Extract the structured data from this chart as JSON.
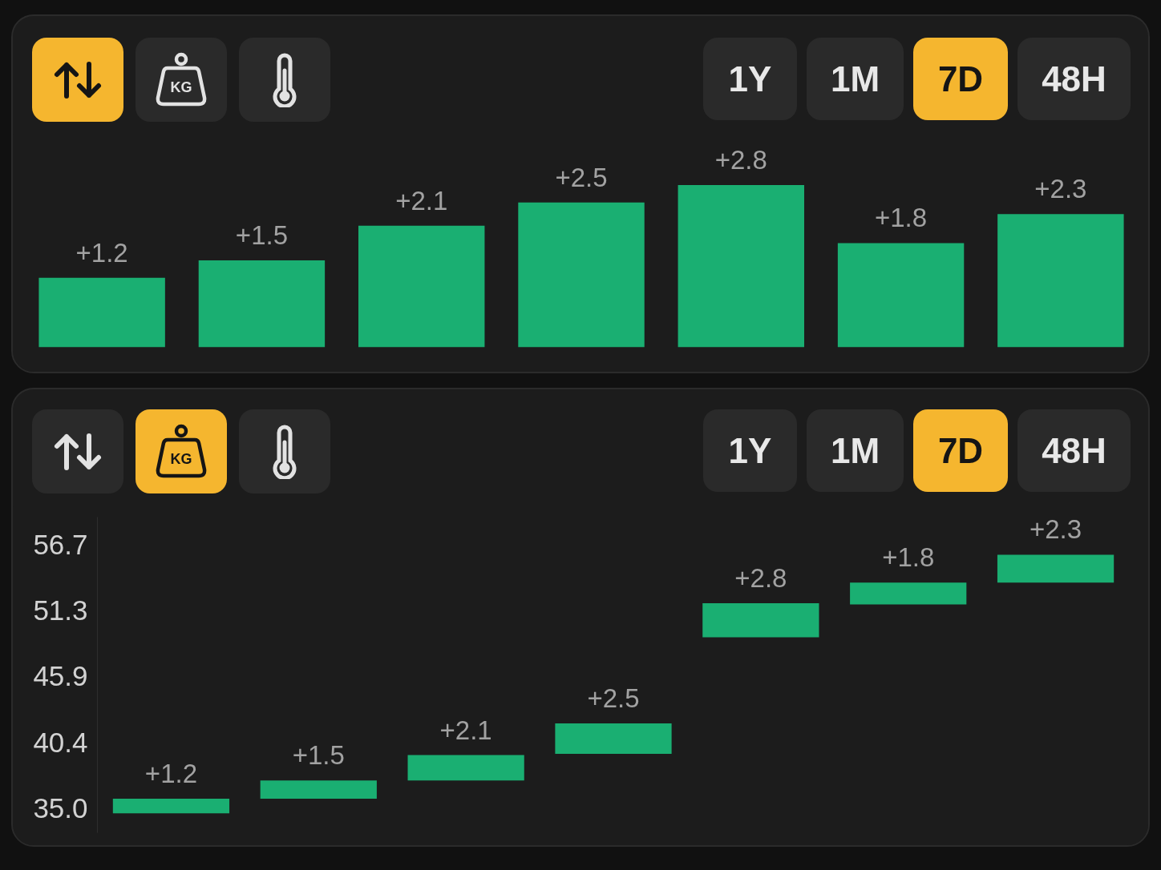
{
  "chart_data": [
    {
      "type": "bar",
      "categories": [
        null,
        null,
        null,
        null,
        null,
        null,
        null
      ],
      "values": [
        1.2,
        1.5,
        2.1,
        2.5,
        2.8,
        1.8,
        2.3
      ],
      "color": "#1aaf72",
      "value_labels": [
        "+1.2",
        "+1.5",
        "+2.1",
        "+2.5",
        "+2.8",
        "+1.8",
        "+2.3"
      ],
      "tick_labels": false,
      "annotations": [
        "1Y",
        "1M",
        "7D",
        "48H",
        "KG"
      ]
    },
    {
      "type": "bar",
      "categories": [
        null,
        null,
        null,
        null,
        null,
        null,
        null
      ],
      "values": [
        1.2,
        1.5,
        2.1,
        2.5,
        2.8,
        1.8,
        2.3
      ],
      "base": [
        34.6,
        35.8,
        37.3,
        39.5,
        49.1,
        51.8,
        53.6
      ],
      "color": "#1aaf72",
      "value_labels": [
        "+1.2",
        "+1.5",
        "+2.1",
        "+2.5",
        "+2.8",
        "+1.8",
        "+2.3"
      ],
      "ylim": [
        33,
        59
      ],
      "yticks": [
        {
          "value": 35,
          "label": "35.0"
        },
        40.4,
        45.9,
        51.3,
        56.7
      ],
      "tick_labels": "y",
      "annotations": [
        "1Y",
        "1M",
        "7D",
        "48H",
        "KG"
      ]
    }
  ]
}
